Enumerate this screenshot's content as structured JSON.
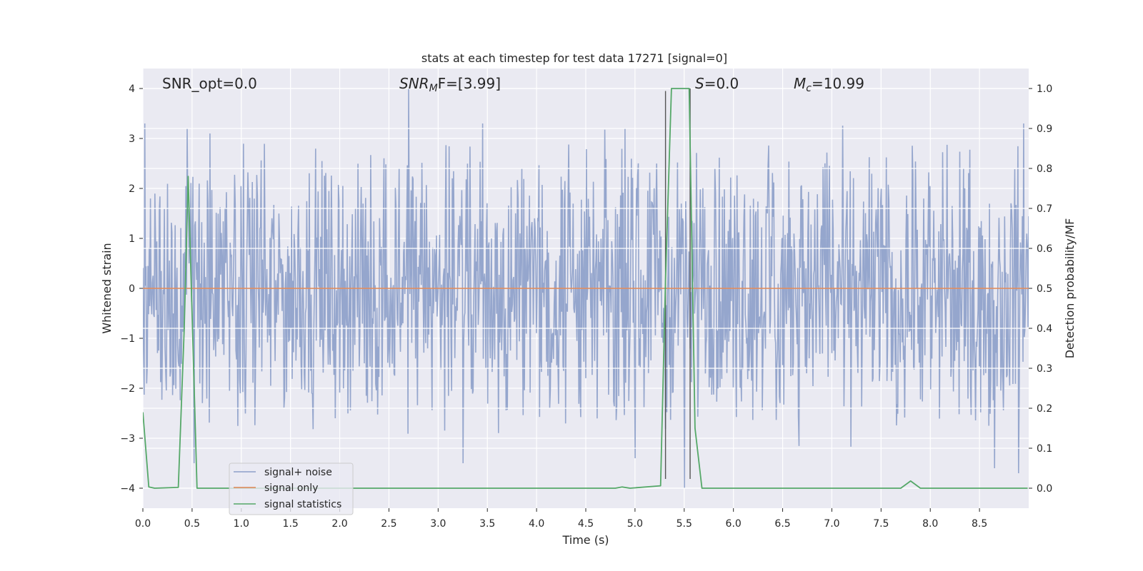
{
  "chart_data": {
    "type": "line",
    "title": "stats at each timestep for test data 17271 [signal=0]",
    "xlabel": "Time (s)",
    "ylabel_left": "Whitened strain",
    "ylabel_right": "Detection probability/MF",
    "xlim": [
      0.0,
      9.0
    ],
    "ylim_left": [
      -4.4,
      4.4
    ],
    "ylim_right": [
      -0.05,
      1.05
    ],
    "xticks": [
      "0.0",
      "0.5",
      "1.0",
      "1.5",
      "2.0",
      "2.5",
      "3.0",
      "3.5",
      "4.0",
      "4.5",
      "5.0",
      "5.5",
      "6.0",
      "6.5",
      "7.0",
      "7.5",
      "8.0",
      "8.5"
    ],
    "yticks_left": [
      "−4",
      "−3",
      "−2",
      "−1",
      "0",
      "1",
      "2",
      "3",
      "4"
    ],
    "yticks_right": [
      "0.0",
      "0.1",
      "0.2",
      "0.3",
      "0.4",
      "0.5",
      "0.6",
      "0.7",
      "0.8",
      "0.9",
      "1.0"
    ],
    "grid": true,
    "legend_position": "lower-left",
    "annotations": {
      "snr_opt": "SNR_opt=0.0",
      "snr_mf_main": "SNR",
      "snr_mf_sub": "M",
      "snr_mf_tail": "F=[3.99]",
      "s_main": "S",
      "s_tail": "=0.0",
      "mc_main": "M",
      "mc_sub": "c",
      "mc_tail": "=10.99"
    },
    "vertical_markers": [
      {
        "x": 5.31,
        "y_top_left": 3.95
      },
      {
        "x": 5.56,
        "y_top_left": 4.0
      }
    ],
    "series": [
      {
        "name": "signal+ noise",
        "axis": "left",
        "style": "noise",
        "color": "#8c9fc9",
        "amplitude_envelope": [
          -3.7,
          3.4
        ],
        "peaks": [
          {
            "x": 0.02,
            "y": 3.3
          },
          {
            "x": 0.45,
            "y": 3.2
          },
          {
            "x": 0.68,
            "y": 3.1
          },
          {
            "x": 2.7,
            "y": 4.0
          },
          {
            "x": 3.25,
            "y": 3.3
          },
          {
            "x": 3.45,
            "y": 3.3
          },
          {
            "x": 4.9,
            "y": 3.2
          },
          {
            "x": 8.95,
            "y": 3.3
          },
          {
            "x": 0.52,
            "y": -3.5
          },
          {
            "x": 3.25,
            "y": -3.5
          },
          {
            "x": 5.0,
            "y": -3.4
          },
          {
            "x": 8.65,
            "y": -3.6
          },
          {
            "x": 8.9,
            "y": -3.7
          },
          {
            "x": 5.5,
            "y": -4.0
          }
        ]
      },
      {
        "name": "signal only",
        "axis": "left",
        "style": "line",
        "color": "#dd8452",
        "x": [
          0.0,
          9.0
        ],
        "y": [
          0.0,
          0.0
        ]
      },
      {
        "name": "signal statistics",
        "axis": "right",
        "style": "line",
        "color": "#55a868",
        "x": [
          0.0,
          0.06,
          0.12,
          0.36,
          0.42,
          0.46,
          0.55,
          0.61,
          4.8,
          4.87,
          4.95,
          5.26,
          5.31,
          5.37,
          5.55,
          5.61,
          5.68,
          7.7,
          7.8,
          7.9,
          8.99
        ],
        "y": [
          0.19,
          0.003,
          0.0,
          0.002,
          0.4,
          0.78,
          0.0,
          0.0,
          0.0,
          0.003,
          0.0,
          0.006,
          0.52,
          1.0,
          1.0,
          0.15,
          0.0,
          0.0,
          0.018,
          0.0,
          0.0
        ]
      }
    ]
  }
}
